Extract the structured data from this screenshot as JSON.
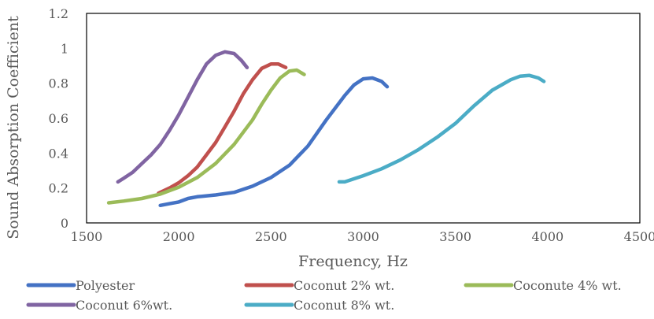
{
  "chart_data": {
    "type": "line",
    "xlabel": "Frequency, Hz",
    "ylabel": "Sound Absorption Coefficient",
    "xlim": [
      1500,
      4500
    ],
    "ylim": [
      0,
      1.2
    ],
    "x_ticks": [
      "1500",
      "2000",
      "2500",
      "3000",
      "3500",
      "4000",
      "4500"
    ],
    "y_ticks": [
      "0",
      "0.2",
      "0.4",
      "0.6",
      "0.8",
      "1",
      "1.2"
    ],
    "grid": false,
    "legend_position": "bottom",
    "series": [
      {
        "name": "Polyester",
        "color": "#4472C4",
        "points": [
          [
            1900,
            0.1
          ],
          [
            1950,
            0.11
          ],
          [
            2000,
            0.12
          ],
          [
            2050,
            0.14
          ],
          [
            2100,
            0.15
          ],
          [
            2200,
            0.16
          ],
          [
            2300,
            0.175
          ],
          [
            2400,
            0.21
          ],
          [
            2500,
            0.26
          ],
          [
            2600,
            0.33
          ],
          [
            2700,
            0.44
          ],
          [
            2800,
            0.59
          ],
          [
            2900,
            0.73
          ],
          [
            2950,
            0.79
          ],
          [
            3000,
            0.825
          ],
          [
            3050,
            0.83
          ],
          [
            3100,
            0.81
          ],
          [
            3130,
            0.78
          ]
        ]
      },
      {
        "name": "Coconut 2% wt.",
        "color": "#C0504D",
        "points": [
          [
            1890,
            0.17
          ],
          [
            1950,
            0.2
          ],
          [
            2000,
            0.23
          ],
          [
            2050,
            0.27
          ],
          [
            2100,
            0.32
          ],
          [
            2150,
            0.39
          ],
          [
            2200,
            0.46
          ],
          [
            2250,
            0.55
          ],
          [
            2300,
            0.64
          ],
          [
            2350,
            0.74
          ],
          [
            2400,
            0.82
          ],
          [
            2450,
            0.885
          ],
          [
            2500,
            0.91
          ],
          [
            2540,
            0.91
          ],
          [
            2580,
            0.89
          ]
        ]
      },
      {
        "name": "Coconute 4% wt.",
        "color": "#9BBB59",
        "points": [
          [
            1620,
            0.115
          ],
          [
            1700,
            0.125
          ],
          [
            1800,
            0.14
          ],
          [
            1900,
            0.165
          ],
          [
            2000,
            0.205
          ],
          [
            2100,
            0.26
          ],
          [
            2200,
            0.34
          ],
          [
            2300,
            0.45
          ],
          [
            2400,
            0.59
          ],
          [
            2450,
            0.68
          ],
          [
            2500,
            0.76
          ],
          [
            2550,
            0.83
          ],
          [
            2600,
            0.87
          ],
          [
            2640,
            0.875
          ],
          [
            2680,
            0.85
          ]
        ]
      },
      {
        "name": "Coconut 6%wt.",
        "color": "#8064A2",
        "points": [
          [
            1670,
            0.235
          ],
          [
            1700,
            0.255
          ],
          [
            1750,
            0.29
          ],
          [
            1800,
            0.34
          ],
          [
            1850,
            0.39
          ],
          [
            1900,
            0.45
          ],
          [
            1950,
            0.53
          ],
          [
            2000,
            0.62
          ],
          [
            2050,
            0.72
          ],
          [
            2100,
            0.82
          ],
          [
            2150,
            0.91
          ],
          [
            2200,
            0.96
          ],
          [
            2250,
            0.98
          ],
          [
            2300,
            0.97
          ],
          [
            2340,
            0.93
          ],
          [
            2370,
            0.89
          ]
        ]
      },
      {
        "name": "Coconut 8% wt.",
        "color": "#4BACC6",
        "points": [
          [
            2870,
            0.235
          ],
          [
            2900,
            0.235
          ],
          [
            3000,
            0.27
          ],
          [
            3100,
            0.31
          ],
          [
            3200,
            0.36
          ],
          [
            3300,
            0.42
          ],
          [
            3400,
            0.49
          ],
          [
            3500,
            0.57
          ],
          [
            3600,
            0.67
          ],
          [
            3700,
            0.76
          ],
          [
            3800,
            0.82
          ],
          [
            3850,
            0.84
          ],
          [
            3900,
            0.845
          ],
          [
            3950,
            0.83
          ],
          [
            3980,
            0.81
          ]
        ]
      }
    ]
  }
}
